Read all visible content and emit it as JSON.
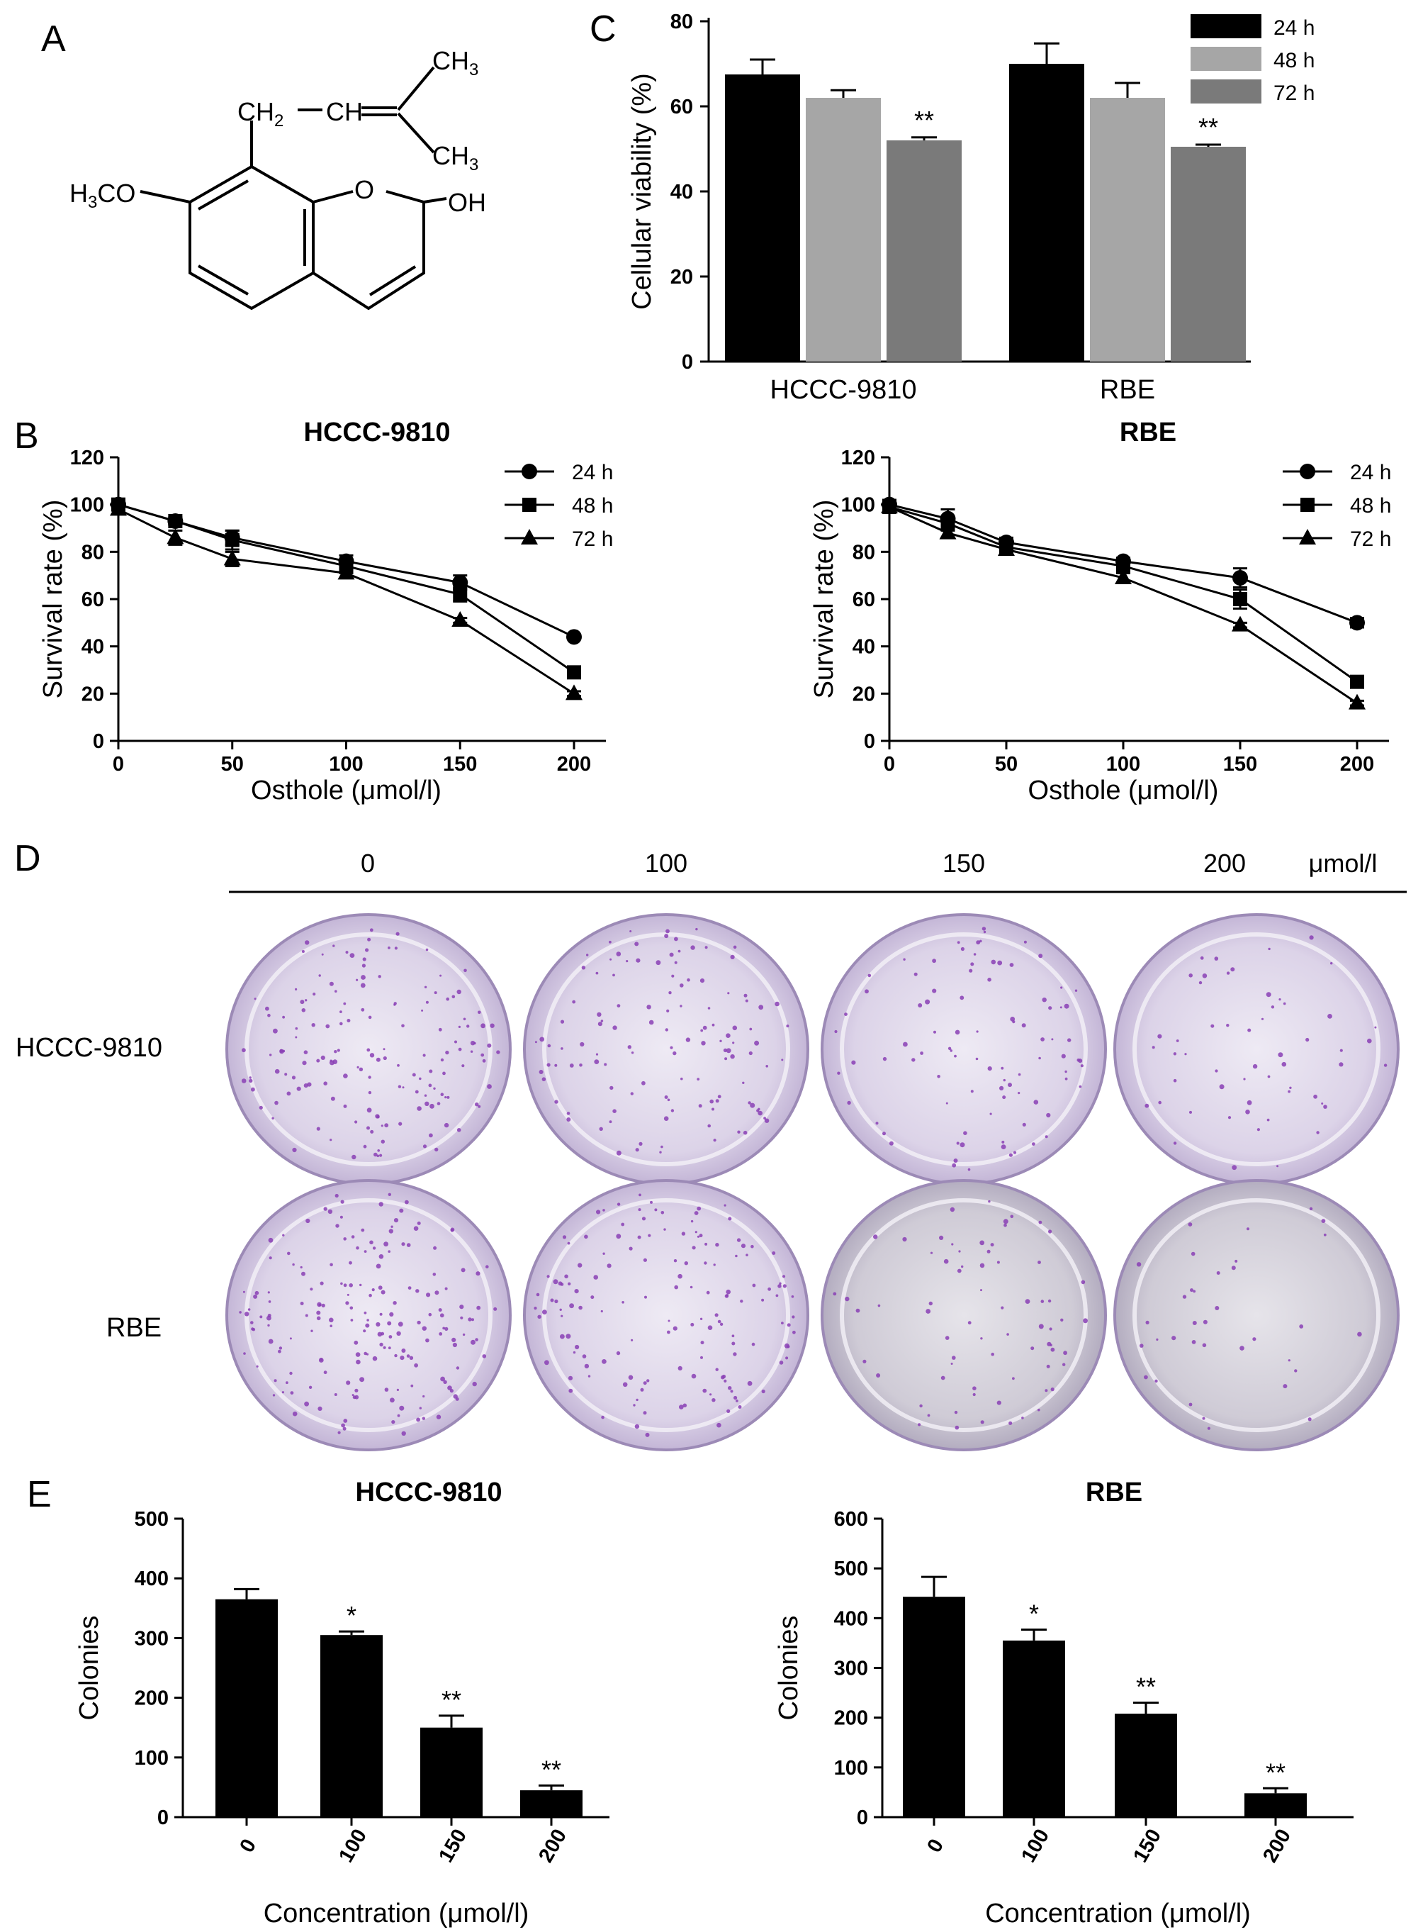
{
  "panel_labels": {
    "a": "A",
    "b": "B",
    "c": "C",
    "d": "D",
    "e": "E"
  },
  "structure": {
    "group_ch2": "CH",
    "group_ch2_sub": "2",
    "group_ch": "CH",
    "group_ch3_top": "CH",
    "group_ch3_top_sub": "3",
    "group_ch3_bottom": "CH",
    "group_ch3_bottom_sub": "3",
    "methoxy": "H",
    "methoxy_sub": "3",
    "methoxy_tail": "CO",
    "ring_oxygen": "O",
    "hydroxyl": "OH"
  },
  "plates": {
    "concentrations": [
      "0",
      "100",
      "150",
      "200"
    ],
    "unit": "μmol/l",
    "rows": [
      "HCCC-9810",
      "RBE"
    ],
    "dish_color": "#b9a9cf",
    "colony_color": "#8a3fb5"
  },
  "colors": {
    "bar_24h": "#000000",
    "bar_48h": "#a6a6a6",
    "bar_72h": "#7a7a7a",
    "bar_E": "#000000"
  },
  "chart_data": [
    {
      "id": "C",
      "type": "bar",
      "categories": [
        "HCCC-9810",
        "RBE"
      ],
      "series": [
        {
          "name": "24 h",
          "values": [
            67.5,
            70
          ],
          "errors": [
            3.5,
            4.8
          ],
          "sig": [
            "",
            ""
          ]
        },
        {
          "name": "48 h",
          "values": [
            62,
            62
          ],
          "errors": [
            1.8,
            3.5
          ],
          "sig": [
            "",
            ""
          ]
        },
        {
          "name": "72 h",
          "values": [
            52,
            50.5
          ],
          "errors": [
            0.7,
            0.5
          ],
          "sig": [
            "**",
            "**"
          ]
        }
      ],
      "ylabel": "Cellular viability (%)",
      "yticks": [
        "0",
        "20",
        "40",
        "60",
        "80"
      ],
      "ylim": [
        0,
        80
      ],
      "legend_position": "top-right"
    },
    {
      "id": "B-left",
      "type": "line",
      "title": "HCCC-9810",
      "x": [
        0,
        25,
        50,
        100,
        150,
        200
      ],
      "series": [
        {
          "name": "24 h",
          "marker": "circle",
          "values": [
            100,
            93,
            86,
            76,
            67,
            44
          ],
          "errors": [
            2,
            1.5,
            3,
            2.5,
            3,
            1
          ]
        },
        {
          "name": "48 h",
          "marker": "square",
          "values": [
            100,
            93,
            85,
            74,
            62,
            29
          ],
          "errors": [
            2,
            1.5,
            4,
            3,
            3,
            1
          ]
        },
        {
          "name": "72 h",
          "marker": "triangle",
          "values": [
            98,
            86,
            77,
            71,
            51,
            20
          ],
          "errors": [
            2,
            3,
            3,
            2,
            1,
            1
          ]
        }
      ],
      "xlabel": "Osthole (μmol/l)",
      "ylabel": "Survival rate (%)",
      "xticks": [
        "0",
        "50",
        "100",
        "150",
        "200"
      ],
      "yticks": [
        "0",
        "20",
        "40",
        "60",
        "80",
        "100",
        "120"
      ],
      "xlim": [
        0,
        200
      ],
      "ylim": [
        0,
        120
      ],
      "legend_position": "top-right"
    },
    {
      "id": "B-right",
      "type": "line",
      "title": "RBE",
      "x": [
        0,
        25,
        50,
        100,
        150,
        200
      ],
      "series": [
        {
          "name": "24 h",
          "marker": "circle",
          "values": [
            100,
            94,
            84,
            76,
            69,
            50
          ],
          "errors": [
            2,
            4,
            2,
            1.5,
            4,
            2
          ]
        },
        {
          "name": "48 h",
          "marker": "square",
          "values": [
            99,
            92,
            82,
            74,
            60,
            25
          ],
          "errors": [
            2,
            3,
            2,
            1.5,
            4,
            1
          ]
        },
        {
          "name": "72 h",
          "marker": "triangle",
          "values": [
            99,
            88,
            81,
            69,
            49,
            16
          ],
          "errors": [
            2,
            2,
            1.5,
            2,
            1,
            1
          ]
        }
      ],
      "xlabel": "Osthole (μmol/l)",
      "ylabel": "Survival rate (%)",
      "xticks": [
        "0",
        "50",
        "100",
        "150",
        "200"
      ],
      "yticks": [
        "0",
        "20",
        "40",
        "60",
        "80",
        "100",
        "120"
      ],
      "xlim": [
        0,
        200
      ],
      "ylim": [
        0,
        120
      ],
      "legend_position": "top-right"
    },
    {
      "id": "E-left",
      "type": "bar",
      "title": "HCCC-9810",
      "categories": [
        "0",
        "100",
        "150",
        "200"
      ],
      "values": [
        365,
        305,
        150,
        45
      ],
      "errors": [
        17,
        6,
        20,
        8
      ],
      "sig": [
        "",
        "*",
        "**",
        "**"
      ],
      "xlabel": "Concentration (μmol/l)",
      "ylabel": "Colonies",
      "yticks": [
        "0",
        "100",
        "200",
        "300",
        "400",
        "500"
      ],
      "ylim": [
        0,
        500
      ]
    },
    {
      "id": "E-right",
      "type": "bar",
      "title": "RBE",
      "categories": [
        "0",
        "100",
        "150",
        "200"
      ],
      "values": [
        443,
        355,
        208,
        48
      ],
      "errors": [
        40,
        22,
        22,
        10
      ],
      "sig": [
        "",
        "*",
        "**",
        "**"
      ],
      "xlabel": "Concentration (μmol/l)",
      "ylabel": "Colonies",
      "yticks": [
        "0",
        "100",
        "200",
        "300",
        "400",
        "500",
        "600"
      ],
      "ylim": [
        0,
        600
      ]
    }
  ]
}
